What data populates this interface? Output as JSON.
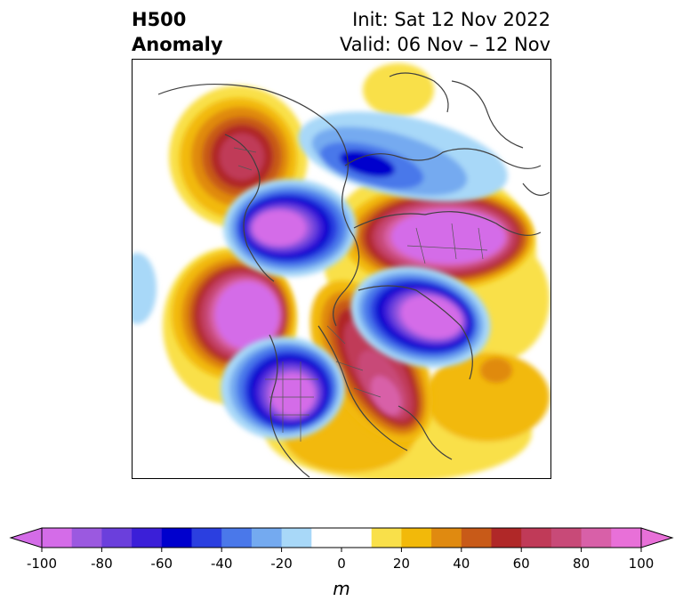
{
  "title": {
    "left_line1": "H500",
    "left_line2": "Anomaly",
    "right_line1": "Init: Sat 12 Nov 2022",
    "right_line2": "Valid: 06 Nov – 12 Nov"
  },
  "colorbar": {
    "unit": "m",
    "range": [
      -100,
      100
    ],
    "step": 10,
    "ticks": [
      "-100",
      "-80",
      "-60",
      "-40",
      "-20",
      "0",
      "20",
      "40",
      "60",
      "80",
      "100"
    ],
    "colors": [
      "#d46ce8",
      "#9b59e0",
      "#6b3fdc",
      "#3b1fd8",
      "#0000cd",
      "#2b3fe0",
      "#4a78ea",
      "#74aaf0",
      "#a8d8f8",
      "#ffffff",
      "#ffffff",
      "#f9e04a",
      "#f2b90a",
      "#e08a10",
      "#c85a18",
      "#b02828",
      "#c03a58",
      "#c84a78",
      "#d860a8",
      "#e870d8"
    ],
    "extend": "both"
  },
  "map": {
    "projection": "polar-stereographic",
    "field": "500 hPa height anomaly"
  }
}
